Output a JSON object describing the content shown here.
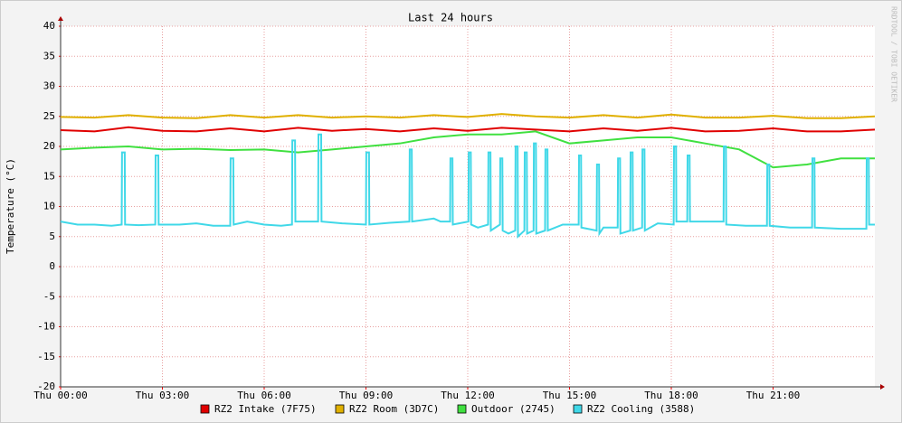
{
  "chart_data": {
    "type": "line",
    "title": "Last 24 hours",
    "y_label": "Temperature (°C)",
    "watermark": "RRDTOOL / TOBI OETIKER",
    "xlim": [
      0,
      24
    ],
    "xticks": [
      {
        "value": 0,
        "label": "Thu 00:00"
      },
      {
        "value": 3,
        "label": "Thu 03:00"
      },
      {
        "value": 6,
        "label": "Thu 06:00"
      },
      {
        "value": 9,
        "label": "Thu 09:00"
      },
      {
        "value": 12,
        "label": "Thu 12:00"
      },
      {
        "value": 15,
        "label": "Thu 15:00"
      },
      {
        "value": 18,
        "label": "Thu 18:00"
      },
      {
        "value": 21,
        "label": "Thu 21:00"
      }
    ],
    "ylim": [
      -20,
      40
    ],
    "yticks": [
      -20,
      -15,
      -10,
      -5,
      0,
      5,
      10,
      15,
      20,
      25,
      30,
      35,
      40
    ],
    "grid": true,
    "x": [
      0,
      1,
      2,
      3,
      4,
      5,
      6,
      7,
      8,
      9,
      10,
      11,
      12,
      13,
      14,
      15,
      16,
      17,
      18,
      19,
      20,
      21,
      22,
      23,
      24
    ],
    "series": [
      {
        "name": "RZ2 Intake (7F75)",
        "color": "#e00000",
        "values": [
          22.7,
          22.5,
          23.2,
          22.6,
          22.5,
          23.0,
          22.5,
          23.1,
          22.6,
          22.9,
          22.5,
          23.0,
          22.6,
          23.1,
          22.8,
          22.5,
          23.0,
          22.6,
          23.1,
          22.5,
          22.6,
          23.0,
          22.5,
          22.5,
          22.8
        ]
      },
      {
        "name": "RZ2 Room (3D7C)",
        "color": "#e0b000",
        "values": [
          24.9,
          24.8,
          25.2,
          24.8,
          24.7,
          25.2,
          24.8,
          25.2,
          24.8,
          25.0,
          24.8,
          25.2,
          24.9,
          25.4,
          25.0,
          24.8,
          25.2,
          24.8,
          25.3,
          24.8,
          24.8,
          25.1,
          24.7,
          24.7,
          25.0
        ]
      },
      {
        "name": "Outdoor (2745)",
        "color": "#40e040",
        "values": [
          19.5,
          19.8,
          20.0,
          19.5,
          19.6,
          19.4,
          19.5,
          19.0,
          19.5,
          20.0,
          20.5,
          21.5,
          22.0,
          22.0,
          22.5,
          20.5,
          21.0,
          21.5,
          21.5,
          20.5,
          19.5,
          16.5,
          17.0,
          18.0,
          18.0
        ]
      },
      {
        "name": "RZ2 Cooling (3588)",
        "color": "#40d8e8",
        "x": [
          0,
          0.5,
          1.0,
          1.5,
          1.8,
          1.81,
          1.89,
          1.9,
          2.3,
          2.79,
          2.8,
          2.88,
          2.89,
          3.5,
          4.0,
          4.5,
          5.0,
          5.01,
          5.09,
          5.1,
          5.5,
          6.0,
          6.5,
          6.82,
          6.83,
          6.91,
          6.92,
          7.2,
          7.59,
          7.6,
          7.68,
          7.69,
          8.3,
          9.0,
          9.01,
          9.09,
          9.1,
          9.7,
          10.28,
          10.29,
          10.35,
          10.36,
          11.0,
          11.2,
          11.48,
          11.49,
          11.55,
          11.56,
          12.02,
          12.03,
          12.09,
          12.1,
          12.3,
          12.6,
          12.61,
          12.67,
          12.68,
          12.95,
          12.96,
          13.02,
          13.03,
          13.2,
          13.4,
          13.41,
          13.47,
          13.48,
          13.67,
          13.68,
          13.74,
          13.75,
          13.94,
          13.95,
          14.01,
          14.02,
          14.28,
          14.29,
          14.35,
          14.36,
          14.8,
          15.27,
          15.28,
          15.34,
          15.35,
          15.8,
          15.81,
          15.87,
          15.88,
          16.0,
          16.42,
          16.43,
          16.49,
          16.5,
          16.79,
          16.8,
          16.86,
          16.87,
          17.14,
          17.15,
          17.21,
          17.22,
          17.6,
          18.07,
          18.08,
          18.14,
          18.15,
          18.47,
          18.48,
          18.54,
          18.55,
          19.0,
          19.54,
          19.55,
          19.61,
          19.62,
          20.2,
          20.82,
          20.83,
          20.89,
          20.9,
          21.5,
          22.15,
          22.16,
          22.22,
          22.23,
          23.0,
          23.75,
          23.76,
          23.82,
          23.83,
          24.0
        ],
        "values": [
          7.5,
          7,
          7,
          6.8,
          7,
          19,
          19,
          7,
          6.9,
          7,
          18.5,
          18.5,
          7,
          7,
          7.2,
          6.8,
          6.8,
          18,
          18,
          7,
          7.5,
          7,
          6.8,
          7,
          21,
          21,
          7.5,
          7.5,
          7.5,
          22,
          22,
          7.5,
          7.2,
          7,
          19,
          19,
          7,
          7.3,
          7.5,
          19.5,
          19.5,
          7.5,
          8,
          7.5,
          7.5,
          18,
          18,
          7,
          7.5,
          19,
          19,
          7,
          6.5,
          7,
          19,
          19,
          6,
          7,
          18,
          18,
          6,
          5.5,
          6,
          20,
          20,
          5,
          6,
          19,
          19,
          5.5,
          6,
          20.5,
          20.5,
          5.5,
          6,
          19.5,
          19.5,
          6,
          7,
          7,
          18.5,
          18.5,
          6.5,
          6,
          17,
          17,
          5.5,
          6.5,
          6.5,
          18,
          18,
          5.5,
          6,
          19,
          19,
          6,
          6.5,
          19.5,
          19.5,
          6,
          7.2,
          7,
          20,
          20,
          7.5,
          7.5,
          18.5,
          18.5,
          7.5,
          7.5,
          7.5,
          20,
          20,
          7,
          6.8,
          6.8,
          17,
          17,
          6.8,
          6.5,
          6.5,
          18,
          18,
          6.5,
          6.3,
          6.3,
          18,
          18,
          7,
          7
        ]
      }
    ]
  }
}
